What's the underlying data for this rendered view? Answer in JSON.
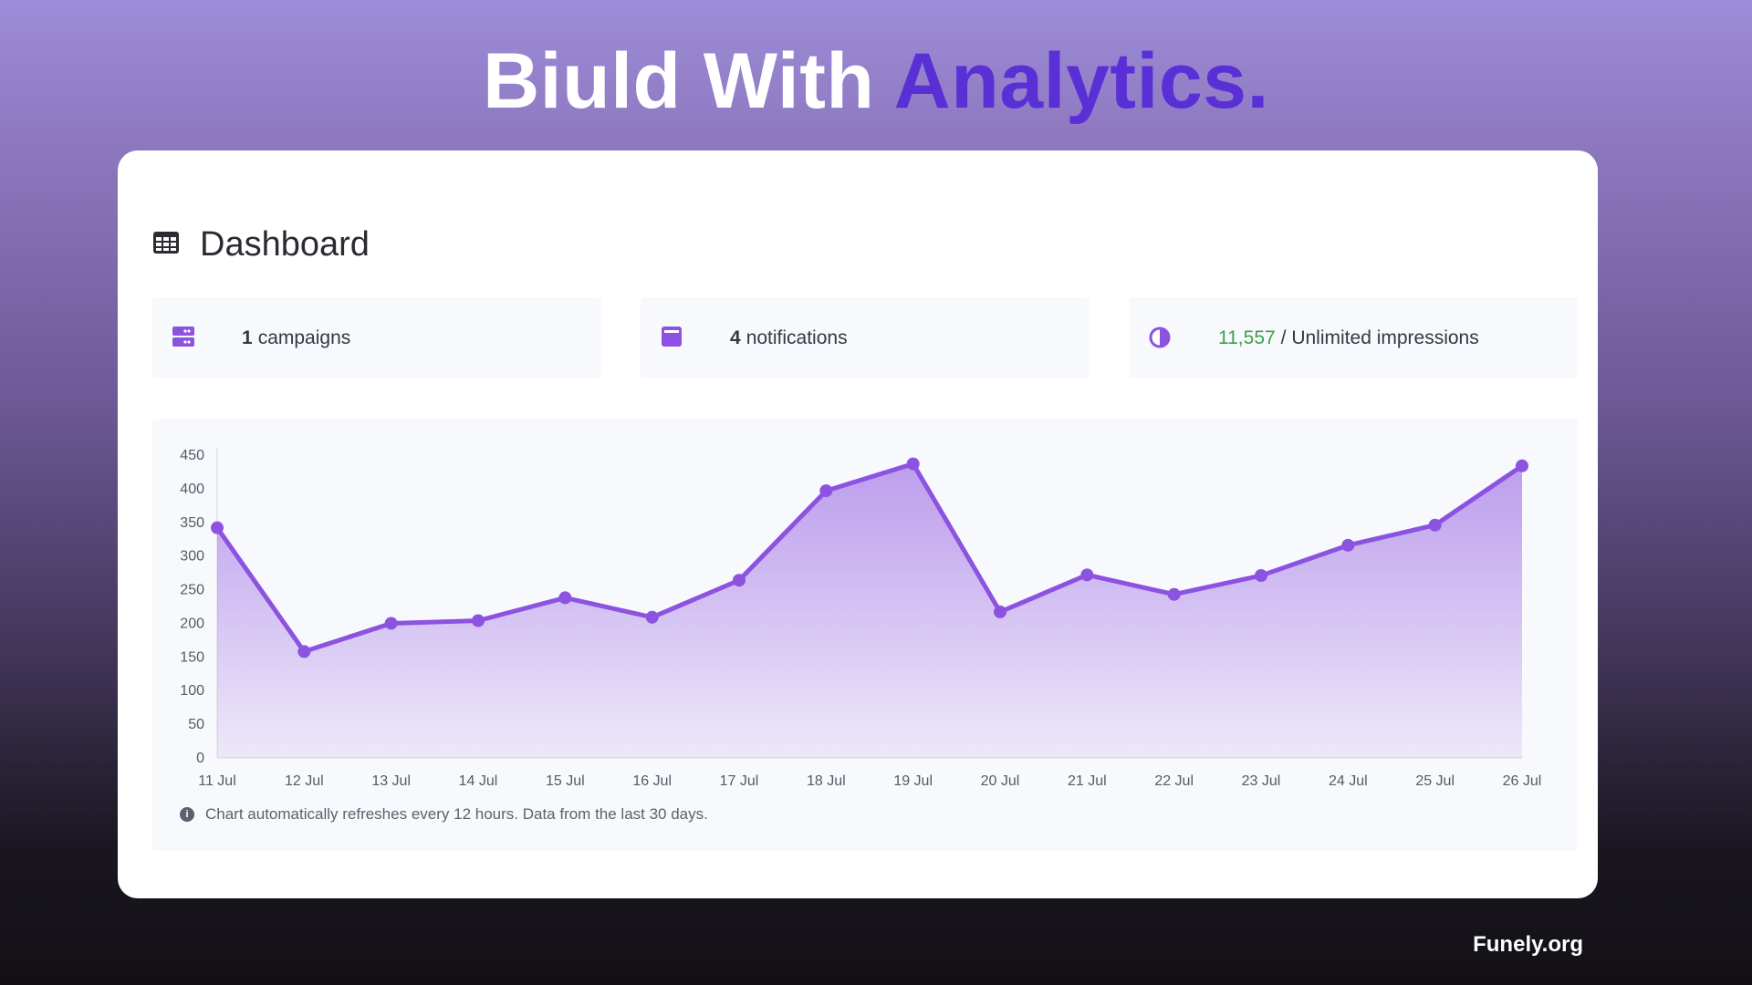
{
  "headline": {
    "part1": "Biuld With",
    "part2": "Analytics."
  },
  "dashboard": {
    "title": "Dashboard",
    "icon": "table-grid-icon"
  },
  "stats": {
    "campaigns": {
      "icon": "server-stack-icon",
      "count": "1",
      "label": "campaigns"
    },
    "notifications": {
      "icon": "inbox-card-icon",
      "count": "4",
      "label": "notifications"
    },
    "impressions": {
      "icon": "half-circle-icon",
      "used": "11,557",
      "label": "/ Unlimited impressions"
    }
  },
  "chart_data": {
    "type": "area",
    "x": [
      "11 Jul",
      "12 Jul",
      "13 Jul",
      "14 Jul",
      "15 Jul",
      "16 Jul",
      "17 Jul",
      "18 Jul",
      "19 Jul",
      "20 Jul",
      "21 Jul",
      "22 Jul",
      "23 Jul",
      "24 Jul",
      "25 Jul",
      "26 Jul"
    ],
    "series": [
      {
        "values": [
          342,
          158,
          200,
          204,
          238,
          209,
          264,
          397,
          437,
          217,
          272,
          243,
          271,
          316,
          346,
          434
        ]
      }
    ],
    "ylim": [
      0,
      450
    ],
    "yticks": [
      0,
      50,
      100,
      150,
      200,
      250,
      300,
      350,
      400,
      450
    ],
    "grid": false,
    "color": "#8c52e0",
    "note": "Chart automatically refreshes every 12 hours. Data from the last 30 days."
  },
  "brand": "Funely.org"
}
